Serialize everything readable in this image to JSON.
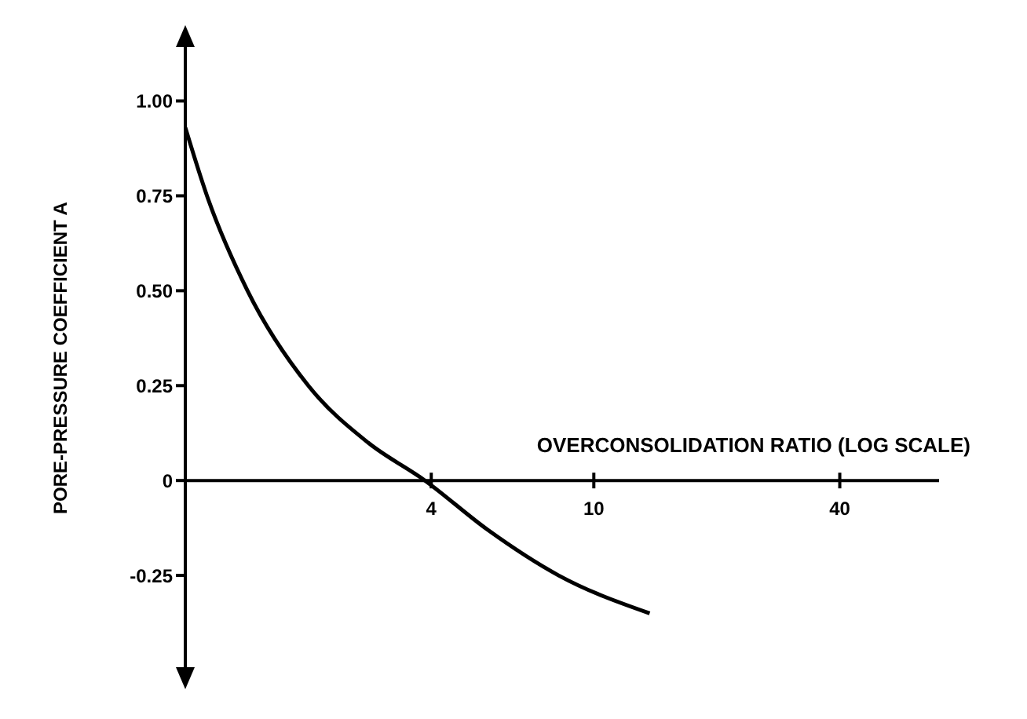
{
  "chart_data": {
    "type": "line",
    "xlabel": "OVERCONSOLIDATION RATIO (LOG SCALE)",
    "ylabel": "PORE-PRESSURE COEFFICIENT A",
    "log": "x",
    "x": [
      1,
      1.13,
      1.42,
      2.0,
      2.8,
      3.86,
      5.5,
      8.2,
      13.7
    ],
    "series": [
      {
        "color": "#000000",
        "values": [
          0.93,
          0.75,
          0.5,
          0.25,
          0.1,
          0,
          -0.13,
          -0.25,
          -0.35
        ]
      }
    ],
    "xlim": [
      1,
      70
    ],
    "xticks": [
      4,
      10,
      40
    ],
    "ylim": [
      -0.5,
      1.15
    ],
    "yticks": [
      {
        "value": 1,
        "label": "1.00"
      },
      {
        "value": 0.75,
        "label": "0.75"
      },
      {
        "value": 0.5,
        "label": "0.50"
      },
      {
        "value": 0.25,
        "label": "0.25"
      },
      {
        "value": 0,
        "label": "0"
      },
      {
        "value": -0.25,
        "label": "-0.25"
      }
    ],
    "grid": false,
    "marker": "none",
    "line_style": "solid"
  }
}
